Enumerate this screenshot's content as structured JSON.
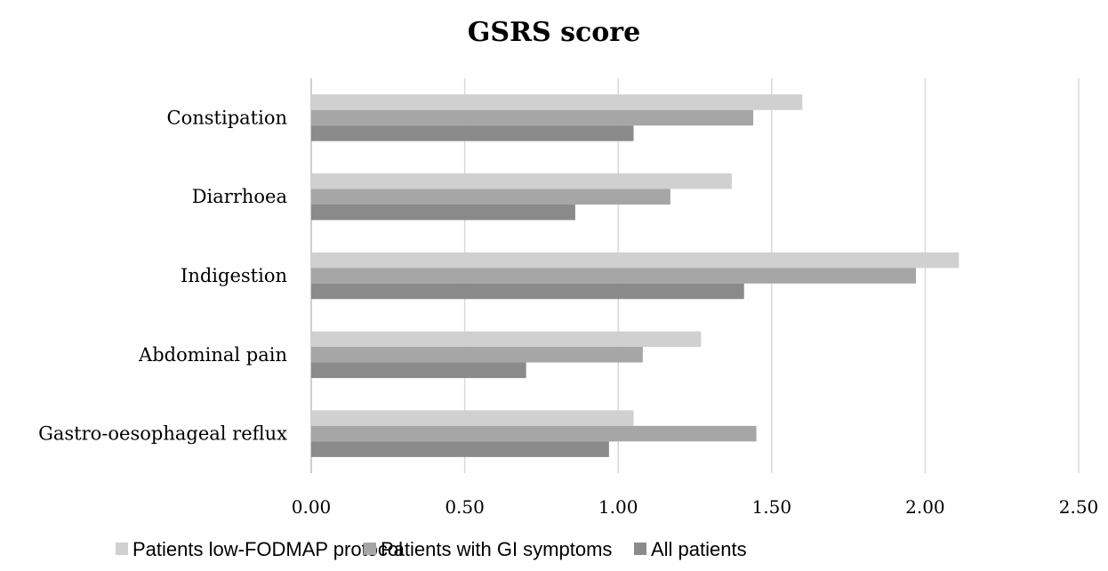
{
  "chart_data": {
    "type": "bar",
    "orientation": "horizontal",
    "title": "GSRS score",
    "xlabel": "",
    "ylabel": "",
    "categories": [
      "Constipation",
      "Diarrhoea",
      "Indigestion",
      "Abdominal pain",
      "Gastro-oesophageal reflux"
    ],
    "series": [
      {
        "name": "Patients low-FODMAP protocol",
        "color": "#d0d0d0",
        "values": [
          1.6,
          1.37,
          2.11,
          1.27,
          1.05
        ]
      },
      {
        "name": "Patients with GI symptoms",
        "color": "#a6a6a6",
        "values": [
          1.44,
          1.17,
          1.97,
          1.08,
          1.45
        ]
      },
      {
        "name": "All patients",
        "color": "#8a8a8a",
        "values": [
          1.05,
          0.86,
          1.41,
          0.7,
          0.97
        ]
      }
    ],
    "xlim": [
      0,
      2.5
    ],
    "xticks": [
      "0.00",
      "0.50",
      "1.00",
      "1.50",
      "2.00",
      "2.50"
    ],
    "grid": true,
    "legend": "bottom"
  }
}
